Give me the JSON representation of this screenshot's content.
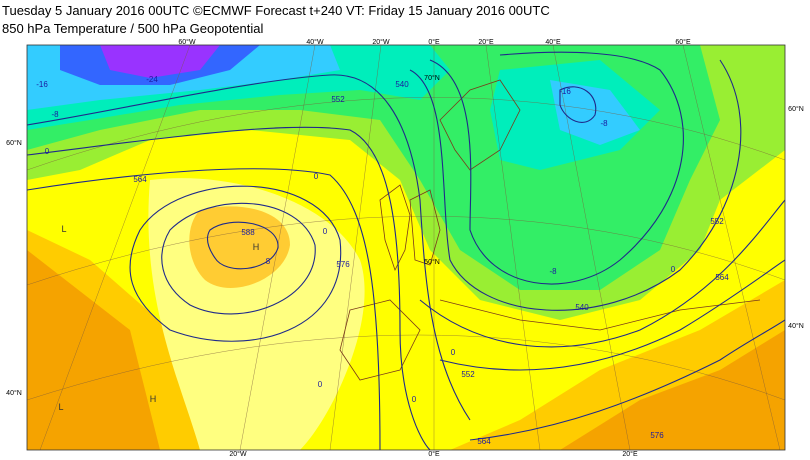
{
  "header": {
    "line1": "Tuesday 5 January 2016 00UTC ©ECMWF Forecast t+240 VT: Friday 15 January 2016 00UTC",
    "line2": "850 hPa Temperature / 500 hPa Geopotential"
  },
  "map": {
    "top_labels": [
      "60°W",
      "40°W",
      "20°W",
      "0°E",
      "20°E",
      "40°E",
      "60°E"
    ],
    "bottom_labels": [
      "20°W",
      "0°E",
      "20°E"
    ],
    "left_labels": [
      "60°N",
      "40°N"
    ],
    "right_labels": [
      "60°N",
      "40°N"
    ],
    "inner_labels": [
      "70°N",
      "50°N"
    ],
    "geopotential_labels": [
      "552",
      "564",
      "576",
      "588",
      "540",
      "552",
      "564",
      "576",
      "552",
      "564",
      "540"
    ],
    "temperature_labels": [
      "-24",
      "-16",
      "-8",
      "0",
      "0",
      "0",
      "8",
      "0",
      "0",
      "0",
      "0",
      "-8",
      "-8",
      "-16"
    ],
    "pressure_centers": [
      "H",
      "L",
      "H",
      "L"
    ]
  }
}
